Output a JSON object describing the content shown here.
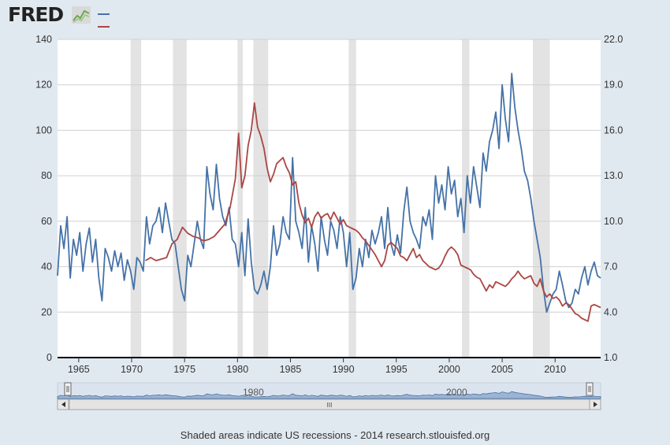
{
  "header": {
    "logo_text": "FRED",
    "logo_icon": "fred-chart-icon"
  },
  "footer": {
    "note": "Shaded areas indicate US recessions - 2014 research.stlouisfed.org"
  },
  "navigator": {
    "labels": [
      "1980",
      "2000"
    ],
    "scroll_grip": "III"
  },
  "colors": {
    "series_blue": "#4572a7",
    "series_red": "#aa4643",
    "recession": "#e3e3e3",
    "background": "#e1e9f0"
  },
  "chart_data": {
    "type": "line",
    "title": "",
    "xlabel": "",
    "ylabel_left": "",
    "ylabel_right": "",
    "x_range": [
      1963.0,
      2014.3
    ],
    "x_ticks": [
      1965,
      1970,
      1975,
      1980,
      1985,
      1990,
      1995,
      2000,
      2005,
      2010
    ],
    "ylim_left": [
      0,
      140
    ],
    "yticks_left": [
      0,
      20,
      40,
      60,
      80,
      100,
      120,
      140
    ],
    "ylim_right": [
      1.0,
      22.0
    ],
    "yticks_right": [
      "1.0",
      "4.0",
      "7.0",
      "10.0",
      "13.0",
      "16.0",
      "19.0",
      "22.0"
    ],
    "grid": true,
    "legend": "top-left",
    "recessions": [
      [
        1969.9,
        1970.9
      ],
      [
        1973.9,
        1975.2
      ],
      [
        1980.0,
        1980.5
      ],
      [
        1981.5,
        1982.9
      ],
      [
        1990.5,
        1991.2
      ],
      [
        2001.2,
        2001.9
      ],
      [
        2007.9,
        2009.5
      ]
    ],
    "series": [
      {
        "axis": "left",
        "color": "#4572a7",
        "x": [
          1963.0,
          1963.3,
          1963.6,
          1963.9,
          1964.2,
          1964.5,
          1964.8,
          1965.1,
          1965.4,
          1965.7,
          1966.0,
          1966.3,
          1966.6,
          1966.9,
          1967.2,
          1967.5,
          1967.8,
          1968.1,
          1968.4,
          1968.7,
          1969.0,
          1969.3,
          1969.6,
          1969.9,
          1970.2,
          1970.5,
          1970.8,
          1971.1,
          1971.4,
          1971.7,
          1972.0,
          1972.3,
          1972.6,
          1972.9,
          1973.2,
          1973.5,
          1973.8,
          1974.1,
          1974.4,
          1974.7,
          1975.0,
          1975.3,
          1975.6,
          1975.9,
          1976.2,
          1976.5,
          1976.8,
          1977.1,
          1977.4,
          1977.7,
          1978.0,
          1978.3,
          1978.6,
          1978.9,
          1979.2,
          1979.5,
          1979.8,
          1980.1,
          1980.4,
          1980.7,
          1981.0,
          1981.3,
          1981.6,
          1981.9,
          1982.2,
          1982.5,
          1982.8,
          1983.1,
          1983.4,
          1983.7,
          1984.0,
          1984.3,
          1984.6,
          1984.9,
          1985.2,
          1985.5,
          1985.8,
          1986.1,
          1986.4,
          1986.7,
          1987.0,
          1987.3,
          1987.6,
          1987.9,
          1988.2,
          1988.5,
          1988.8,
          1989.1,
          1989.4,
          1989.7,
          1990.0,
          1990.3,
          1990.6,
          1990.9,
          1991.2,
          1991.5,
          1991.8,
          1992.1,
          1992.4,
          1992.7,
          1993.0,
          1993.3,
          1993.6,
          1993.9,
          1994.2,
          1994.5,
          1994.8,
          1995.1,
          1995.4,
          1995.7,
          1996.0,
          1996.3,
          1996.6,
          1996.9,
          1997.2,
          1997.5,
          1997.8,
          1998.1,
          1998.4,
          1998.7,
          1999.0,
          1999.3,
          1999.6,
          1999.9,
          2000.2,
          2000.5,
          2000.8,
          2001.1,
          2001.4,
          2001.7,
          2002.0,
          2002.3,
          2002.6,
          2002.9,
          2003.2,
          2003.5,
          2003.8,
          2004.1,
          2004.4,
          2004.7,
          2005.0,
          2005.3,
          2005.6,
          2005.9,
          2006.2,
          2006.5,
          2006.8,
          2007.1,
          2007.4,
          2007.7,
          2008.0,
          2008.3,
          2008.6,
          2008.9,
          2009.2,
          2009.5,
          2009.8,
          2010.1,
          2010.4,
          2010.7,
          2011.0,
          2011.3,
          2011.6,
          2011.9,
          2012.2,
          2012.5,
          2012.8,
          2013.1,
          2013.4,
          2013.7,
          2014.0,
          2014.3
        ],
        "values": [
          36,
          58,
          48,
          62,
          35,
          52,
          45,
          55,
          38,
          50,
          57,
          42,
          52,
          35,
          25,
          48,
          44,
          38,
          47,
          40,
          46,
          34,
          43,
          38,
          30,
          44,
          42,
          38,
          62,
          50,
          58,
          60,
          66,
          55,
          68,
          60,
          52,
          50,
          40,
          30,
          25,
          45,
          40,
          50,
          60,
          52,
          48,
          84,
          72,
          65,
          85,
          70,
          62,
          58,
          66,
          52,
          50,
          40,
          55,
          36,
          61,
          42,
          30,
          28,
          32,
          38,
          30,
          40,
          58,
          45,
          50,
          62,
          55,
          52,
          88,
          60,
          55,
          48,
          66,
          42,
          58,
          50,
          38,
          62,
          52,
          45,
          60,
          56,
          48,
          62,
          55,
          40,
          55,
          30,
          35,
          48,
          40,
          52,
          44,
          56,
          50,
          55,
          62,
          48,
          66,
          50,
          45,
          54,
          46,
          64,
          75,
          60,
          55,
          52,
          48,
          62,
          58,
          65,
          52,
          80,
          68,
          76,
          65,
          84,
          72,
          78,
          62,
          70,
          55,
          80,
          68,
          84,
          75,
          66,
          90,
          82,
          95,
          100,
          108,
          92,
          120,
          105,
          95,
          125,
          110,
          100,
          92,
          82,
          78,
          70,
          60,
          52,
          44,
          30,
          20,
          24,
          28,
          30,
          38,
          32,
          25,
          22,
          24,
          30,
          28,
          35,
          40,
          32,
          38,
          42,
          36,
          35
        ]
      },
      {
        "axis": "right",
        "color": "#aa4643",
        "x": [
          1971.3,
          1971.8,
          1972.3,
          1972.8,
          1973.3,
          1973.8,
          1974.3,
          1974.8,
          1975.3,
          1975.8,
          1976.3,
          1976.8,
          1977.3,
          1977.8,
          1978.3,
          1978.8,
          1979.3,
          1979.8,
          1980.1,
          1980.4,
          1980.7,
          1981.0,
          1981.3,
          1981.6,
          1981.9,
          1982.2,
          1982.5,
          1982.8,
          1983.1,
          1983.4,
          1983.7,
          1984.0,
          1984.3,
          1984.6,
          1984.9,
          1985.2,
          1985.5,
          1985.8,
          1986.1,
          1986.4,
          1986.7,
          1987.0,
          1987.3,
          1987.6,
          1987.9,
          1988.2,
          1988.5,
          1988.8,
          1989.1,
          1989.4,
          1989.7,
          1990.0,
          1990.3,
          1990.6,
          1990.9,
          1991.2,
          1991.5,
          1991.8,
          1992.1,
          1992.4,
          1992.7,
          1993.0,
          1993.3,
          1993.6,
          1993.9,
          1994.2,
          1994.5,
          1994.8,
          1995.1,
          1995.4,
          1995.7,
          1996.0,
          1996.3,
          1996.6,
          1996.9,
          1997.2,
          1997.5,
          1997.8,
          1998.1,
          1998.4,
          1998.7,
          1999.0,
          1999.3,
          1999.6,
          1999.9,
          2000.2,
          2000.5,
          2000.8,
          2001.1,
          2001.4,
          2001.7,
          2002.0,
          2002.3,
          2002.6,
          2002.9,
          2003.2,
          2003.5,
          2003.8,
          2004.1,
          2004.4,
          2004.7,
          2005.0,
          2005.3,
          2005.6,
          2005.9,
          2006.2,
          2006.5,
          2006.8,
          2007.1,
          2007.4,
          2007.7,
          2008.0,
          2008.3,
          2008.6,
          2008.9,
          2009.2,
          2009.5,
          2009.8,
          2010.1,
          2010.4,
          2010.7,
          2011.0,
          2011.3,
          2011.6,
          2011.9,
          2012.2,
          2012.5,
          2012.8,
          2013.1,
          2013.4,
          2013.7,
          2014.0,
          2014.3
        ],
        "values": [
          7.4,
          7.6,
          7.4,
          7.5,
          7.6,
          8.5,
          8.8,
          9.6,
          9.2,
          9.0,
          8.9,
          8.7,
          8.8,
          9.0,
          9.4,
          9.8,
          10.9,
          12.8,
          15.8,
          12.2,
          13.0,
          15.0,
          16.0,
          17.8,
          16.2,
          15.6,
          14.8,
          13.5,
          12.6,
          13.1,
          13.8,
          14.0,
          14.2,
          13.6,
          13.2,
          12.4,
          12.6,
          11.2,
          10.4,
          9.9,
          10.2,
          9.6,
          10.3,
          10.6,
          10.2,
          10.4,
          10.5,
          10.1,
          10.6,
          10.2,
          9.8,
          10.1,
          9.7,
          9.6,
          9.5,
          9.4,
          9.2,
          8.9,
          8.7,
          8.4,
          8.1,
          7.8,
          7.4,
          7.0,
          7.4,
          8.4,
          8.6,
          8.4,
          8.2,
          7.7,
          7.6,
          7.4,
          7.8,
          8.2,
          7.6,
          7.8,
          7.4,
          7.2,
          7.0,
          6.9,
          6.8,
          6.9,
          7.2,
          7.7,
          8.1,
          8.3,
          8.1,
          7.8,
          7.1,
          7.0,
          6.9,
          6.8,
          6.5,
          6.3,
          6.2,
          5.8,
          5.4,
          5.8,
          5.6,
          6.0,
          5.9,
          5.8,
          5.7,
          5.9,
          6.2,
          6.4,
          6.7,
          6.4,
          6.2,
          6.3,
          6.4,
          5.9,
          5.7,
          6.2,
          5.4,
          5.0,
          5.2,
          4.9,
          5.0,
          4.8,
          4.4,
          4.6,
          4.5,
          4.2,
          3.9,
          3.8,
          3.6,
          3.5,
          3.4,
          4.4,
          4.5,
          4.4,
          4.3
        ]
      }
    ]
  }
}
